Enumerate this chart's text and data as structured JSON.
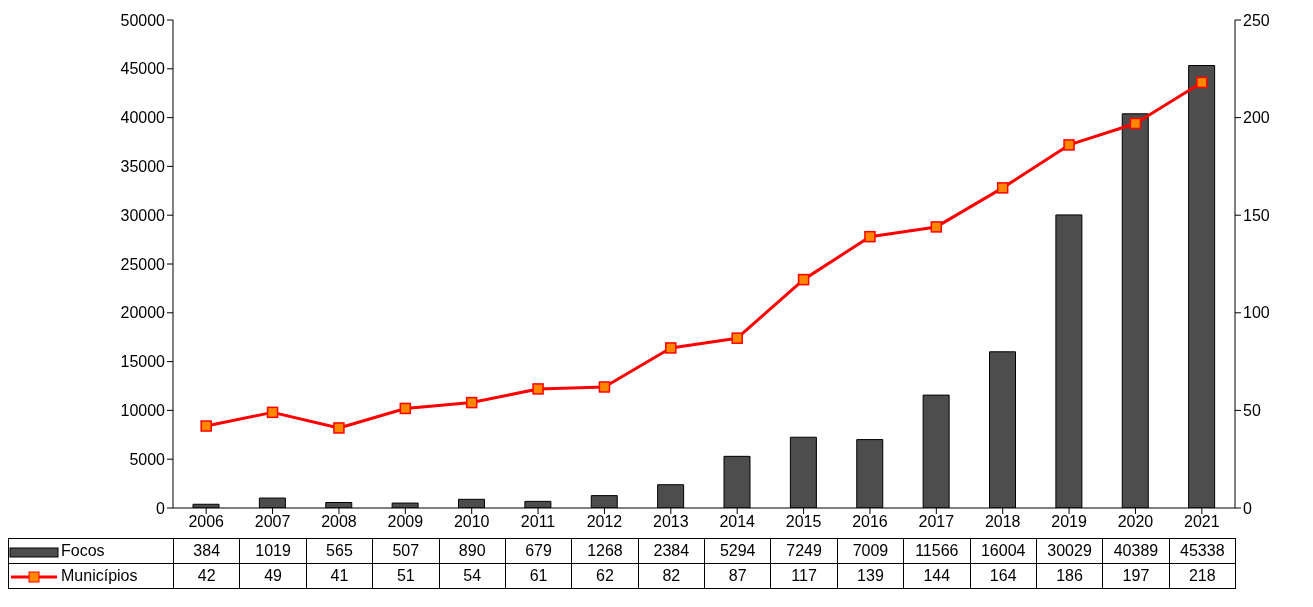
{
  "chart_data": {
    "type": "bar",
    "categories": [
      "2006",
      "2007",
      "2008",
      "2009",
      "2010",
      "2011",
      "2012",
      "2013",
      "2014",
      "2015",
      "2016",
      "2017",
      "2018",
      "2019",
      "2020",
      "2021"
    ],
    "series": [
      {
        "name": "Focos",
        "color": "#4d4d4d",
        "values": [
          384,
          1019,
          565,
          507,
          890,
          679,
          1268,
          2384,
          5294,
          7249,
          7009,
          11566,
          16004,
          30029,
          40389,
          45338
        ]
      },
      {
        "name": "Municípios",
        "type": "line",
        "axis": "y2",
        "color": "#ff0000",
        "marker": "square",
        "values": [
          42,
          49,
          41,
          51,
          54,
          61,
          62,
          82,
          87,
          117,
          139,
          144,
          164,
          186,
          197,
          218
        ]
      }
    ],
    "ylim": [
      0,
      50000
    ],
    "yticks": [
      0,
      5000,
      10000,
      15000,
      20000,
      25000,
      30000,
      35000,
      40000,
      45000,
      50000
    ],
    "y2lim": [
      0,
      250
    ],
    "y2ticks": [
      0,
      50,
      100,
      150,
      200,
      250
    ],
    "grid": false,
    "legend": "bottom",
    "data_labels": true
  }
}
